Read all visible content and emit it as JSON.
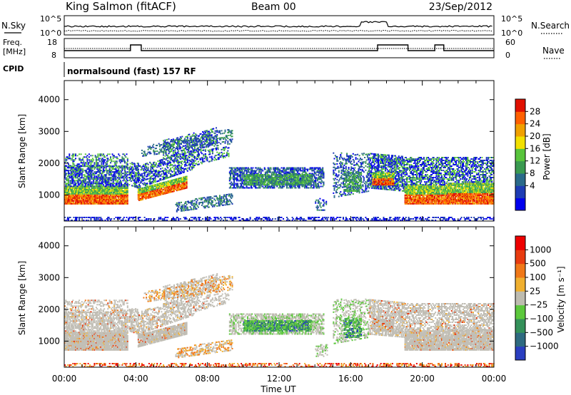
{
  "header": {
    "station": "King Salmon (fitACF)",
    "beam": "Beam 00",
    "date": "23/Sep/2012"
  },
  "strip": {
    "nsky_label": "N.Sky",
    "nsky_ticks": [
      "10^5",
      "10^0"
    ],
    "nsearch_label": "N.Search",
    "nsearch_ticks": [
      "10^5",
      "10^0"
    ],
    "freq_label_1": "Freq.",
    "freq_label_2": "[MHz]",
    "freq_ticks": [
      "18",
      "8"
    ],
    "nave_label": "Nave",
    "nave_ticks": [
      "60",
      "0"
    ],
    "cpid_label": "CPID",
    "cpid_value": "normalsound (fast) 157 RF"
  },
  "chart_data": [
    {
      "type": "heatmap",
      "name": "power",
      "ylabel": "Slant Range [km]",
      "ylim": [
        180,
        4600
      ],
      "yticks": [
        1000,
        2000,
        3000,
        4000
      ],
      "xlim": [
        0,
        24
      ],
      "xticks": [
        "00:00",
        "04:00",
        "08:00",
        "12:00",
        "16:00",
        "20:00",
        "00:00"
      ],
      "colorbar_label": "Power [dB]",
      "colorbar_ticks": [
        "28",
        "24",
        "20",
        "16",
        "12",
        "8",
        "4"
      ],
      "colors": [
        "#0000ee",
        "#1e3cb4",
        "#2a6a8a",
        "#3a9a50",
        "#58c43c",
        "#f2e000",
        "#f0a000",
        "#ff6000",
        "#e01000"
      ]
    },
    {
      "type": "heatmap",
      "name": "velocity",
      "ylabel": "Slant Range [km]",
      "ylim": [
        180,
        4600
      ],
      "yticks": [
        1000,
        2000,
        3000,
        4000
      ],
      "xlim": [
        0,
        24
      ],
      "xticks": [
        "00:00",
        "04:00",
        "08:00",
        "12:00",
        "16:00",
        "20:00",
        "00:00"
      ],
      "xlabel": "Time UT",
      "colorbar_label": "Velocity [m s⁻¹]",
      "colorbar_ticks": [
        "1000",
        "500",
        "100",
        "25",
        "−25",
        "−100",
        "−500",
        "−1000"
      ],
      "colors": [
        "#2a3ec0",
        "#2e6a80",
        "#34915a",
        "#5cc83c",
        "#bebcb0",
        "#f0b030",
        "#f07818",
        "#e83c10",
        "#ee0000"
      ],
      "ground_scatter_color": "#c0bdb4"
    }
  ]
}
